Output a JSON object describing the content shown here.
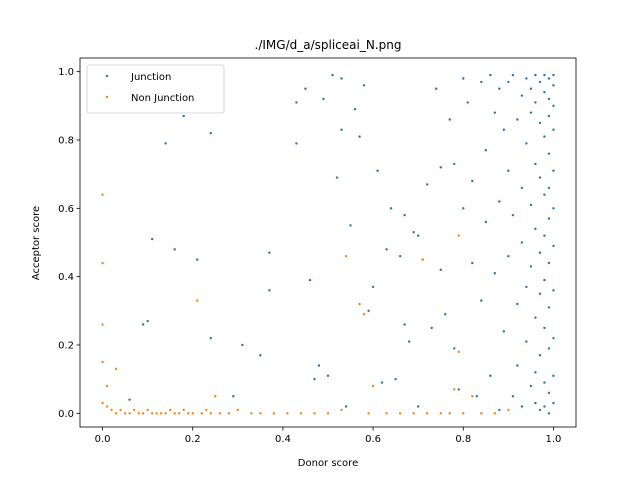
{
  "chart_data": {
    "type": "scatter",
    "title": "./IMG/d_a/spliceai_N.png",
    "xlabel": "Donor score",
    "ylabel": "Acceptor score",
    "xlim": [
      -0.05,
      1.05
    ],
    "ylim": [
      -0.04,
      1.04
    ],
    "xticks": [
      0.0,
      0.2,
      0.4,
      0.6,
      0.8,
      1.0
    ],
    "yticks": [
      0.0,
      0.2,
      0.4,
      0.6,
      0.8,
      1.0
    ],
    "xtick_labels": [
      "0.0",
      "0.2",
      "0.4",
      "0.6",
      "0.8",
      "1.0"
    ],
    "ytick_labels": [
      "0.0",
      "0.2",
      "0.4",
      "0.6",
      "0.8",
      "1.0"
    ],
    "grid": false,
    "legend_position": "upper-left",
    "series": [
      {
        "name": "Junction",
        "color": "#1f77b4",
        "points": [
          [
            0.06,
            0.04
          ],
          [
            0.09,
            0.26
          ],
          [
            0.1,
            0.27
          ],
          [
            0.11,
            0.51
          ],
          [
            0.14,
            0.79
          ],
          [
            0.16,
            0.48
          ],
          [
            0.18,
            0.87
          ],
          [
            0.21,
            0.45
          ],
          [
            0.24,
            0.82
          ],
          [
            0.24,
            0.22
          ],
          [
            0.29,
            0.05
          ],
          [
            0.31,
            0.2
          ],
          [
            0.35,
            0.17
          ],
          [
            0.37,
            0.47
          ],
          [
            0.37,
            0.36
          ],
          [
            0.43,
            0.91
          ],
          [
            0.43,
            0.79
          ],
          [
            0.45,
            0.95
          ],
          [
            0.46,
            0.39
          ],
          [
            0.47,
            0.1
          ],
          [
            0.48,
            0.14
          ],
          [
            0.49,
            0.92
          ],
          [
            0.5,
            0.11
          ],
          [
            0.51,
            0.99
          ],
          [
            0.52,
            0.69
          ],
          [
            0.53,
            0.83
          ],
          [
            0.53,
            0.98
          ],
          [
            0.54,
            0.02
          ],
          [
            0.55,
            0.55
          ],
          [
            0.56,
            0.89
          ],
          [
            0.57,
            0.81
          ],
          [
            0.58,
            0.96
          ],
          [
            0.59,
            0.3
          ],
          [
            0.6,
            0.37
          ],
          [
            0.61,
            0.71
          ],
          [
            0.62,
            0.09
          ],
          [
            0.63,
            0.48
          ],
          [
            0.64,
            0.6
          ],
          [
            0.65,
            0.1
          ],
          [
            0.66,
            0.46
          ],
          [
            0.67,
            0.26
          ],
          [
            0.67,
            0.58
          ],
          [
            0.68,
            0.21
          ],
          [
            0.69,
            0.53
          ],
          [
            0.7,
            0.52
          ],
          [
            0.7,
            0.02
          ],
          [
            0.71,
            0.45
          ],
          [
            0.72,
            0.67
          ],
          [
            0.73,
            0.25
          ],
          [
            0.74,
            0.95
          ],
          [
            0.75,
            0.42
          ],
          [
            0.75,
            0.72
          ],
          [
            0.76,
            0.29
          ],
          [
            0.77,
            0.86
          ],
          [
            0.78,
            0.19
          ],
          [
            0.78,
            0.73
          ],
          [
            0.79,
            0.07
          ],
          [
            0.8,
            0.98
          ],
          [
            0.8,
            0.6
          ],
          [
            0.81,
            0.91
          ],
          [
            0.82,
            0.44
          ],
          [
            0.82,
            0.68
          ],
          [
            0.83,
            0.05
          ],
          [
            0.84,
            0.97
          ],
          [
            0.84,
            0.33
          ],
          [
            0.85,
            0.77
          ],
          [
            0.85,
            0.56
          ],
          [
            0.86,
            0.99
          ],
          [
            0.86,
            0.11
          ],
          [
            0.87,
            0.88
          ],
          [
            0.87,
            0.41
          ],
          [
            0.88,
            0.95
          ],
          [
            0.88,
            0.62
          ],
          [
            0.88,
            0.01
          ],
          [
            0.89,
            0.24
          ],
          [
            0.89,
            0.83
          ],
          [
            0.9,
            0.97
          ],
          [
            0.9,
            0.71
          ],
          [
            0.9,
            0.46
          ],
          [
            0.91,
            0.05
          ],
          [
            0.91,
            0.99
          ],
          [
            0.91,
            0.58
          ],
          [
            0.92,
            0.86
          ],
          [
            0.92,
            0.32
          ],
          [
            0.92,
            0.14
          ],
          [
            0.93,
            0.93
          ],
          [
            0.93,
            0.66
          ],
          [
            0.93,
            0.5
          ],
          [
            0.93,
            0.02
          ],
          [
            0.94,
            0.98
          ],
          [
            0.94,
            0.79
          ],
          [
            0.94,
            0.37
          ],
          [
            0.94,
            0.21
          ],
          [
            0.95,
            0.95
          ],
          [
            0.95,
            0.88
          ],
          [
            0.95,
            0.61
          ],
          [
            0.95,
            0.43
          ],
          [
            0.95,
            0.08
          ],
          [
            0.96,
            0.99
          ],
          [
            0.96,
            0.91
          ],
          [
            0.96,
            0.73
          ],
          [
            0.96,
            0.54
          ],
          [
            0.96,
            0.28
          ],
          [
            0.96,
            0.12
          ],
          [
            0.96,
            0.03
          ],
          [
            0.97,
            0.97
          ],
          [
            0.97,
            0.85
          ],
          [
            0.97,
            0.69
          ],
          [
            0.97,
            0.47
          ],
          [
            0.97,
            0.35
          ],
          [
            0.97,
            0.17
          ],
          [
            0.97,
            0.01
          ],
          [
            0.98,
            0.99
          ],
          [
            0.98,
            0.94
          ],
          [
            0.98,
            0.81
          ],
          [
            0.98,
            0.64
          ],
          [
            0.98,
            0.52
          ],
          [
            0.98,
            0.39
          ],
          [
            0.98,
            0.25
          ],
          [
            0.98,
            0.09
          ],
          [
            0.98,
            0.02
          ],
          [
            0.99,
            0.98
          ],
          [
            0.99,
            0.92
          ],
          [
            0.99,
            0.87
          ],
          [
            0.99,
            0.76
          ],
          [
            0.99,
            0.66
          ],
          [
            0.99,
            0.57
          ],
          [
            0.99,
            0.44
          ],
          [
            0.99,
            0.31
          ],
          [
            0.99,
            0.19
          ],
          [
            0.99,
            0.06
          ],
          [
            0.99,
            0.0
          ],
          [
            1.0,
            0.99
          ],
          [
            1.0,
            0.96
          ],
          [
            1.0,
            0.9
          ],
          [
            1.0,
            0.83
          ],
          [
            1.0,
            0.71
          ],
          [
            1.0,
            0.6
          ],
          [
            1.0,
            0.49
          ],
          [
            1.0,
            0.36
          ],
          [
            1.0,
            0.22
          ],
          [
            1.0,
            0.11
          ],
          [
            1.0,
            0.03
          ]
        ]
      },
      {
        "name": "Non Junction",
        "color": "#ff7f0e",
        "points": [
          [
            0.0,
            0.64
          ],
          [
            0.0,
            0.44
          ],
          [
            0.0,
            0.26
          ],
          [
            0.0,
            0.15
          ],
          [
            0.01,
            0.08
          ],
          [
            0.03,
            0.13
          ],
          [
            0.0,
            0.03
          ],
          [
            0.01,
            0.02
          ],
          [
            0.02,
            0.01
          ],
          [
            0.03,
            0.0
          ],
          [
            0.04,
            0.01
          ],
          [
            0.05,
            0.0
          ],
          [
            0.06,
            0.0
          ],
          [
            0.07,
            0.01
          ],
          [
            0.08,
            0.0
          ],
          [
            0.09,
            0.0
          ],
          [
            0.1,
            0.01
          ],
          [
            0.11,
            0.0
          ],
          [
            0.12,
            0.0
          ],
          [
            0.13,
            0.0
          ],
          [
            0.14,
            0.0
          ],
          [
            0.15,
            0.01
          ],
          [
            0.16,
            0.0
          ],
          [
            0.17,
            0.0
          ],
          [
            0.18,
            0.01
          ],
          [
            0.19,
            0.0
          ],
          [
            0.2,
            0.0
          ],
          [
            0.21,
            0.33
          ],
          [
            0.22,
            0.0
          ],
          [
            0.23,
            0.01
          ],
          [
            0.24,
            0.0
          ],
          [
            0.25,
            0.05
          ],
          [
            0.26,
            0.0
          ],
          [
            0.28,
            0.0
          ],
          [
            0.3,
            0.01
          ],
          [
            0.33,
            0.0
          ],
          [
            0.35,
            0.0
          ],
          [
            0.38,
            0.0
          ],
          [
            0.41,
            0.0
          ],
          [
            0.44,
            0.0
          ],
          [
            0.47,
            0.0
          ],
          [
            0.5,
            0.0
          ],
          [
            0.53,
            0.01
          ],
          [
            0.54,
            0.46
          ],
          [
            0.57,
            0.32
          ],
          [
            0.58,
            0.29
          ],
          [
            0.59,
            0.0
          ],
          [
            0.6,
            0.08
          ],
          [
            0.63,
            0.0
          ],
          [
            0.66,
            0.0
          ],
          [
            0.69,
            0.0
          ],
          [
            0.71,
            0.45
          ],
          [
            0.72,
            0.0
          ],
          [
            0.75,
            0.0
          ],
          [
            0.77,
            0.0
          ],
          [
            0.78,
            0.07
          ],
          [
            0.79,
            0.18
          ],
          [
            0.79,
            0.52
          ],
          [
            0.8,
            0.0
          ],
          [
            0.82,
            0.05
          ],
          [
            0.84,
            0.0
          ],
          [
            0.87,
            0.0
          ],
          [
            0.9,
            0.01
          ]
        ]
      }
    ]
  }
}
